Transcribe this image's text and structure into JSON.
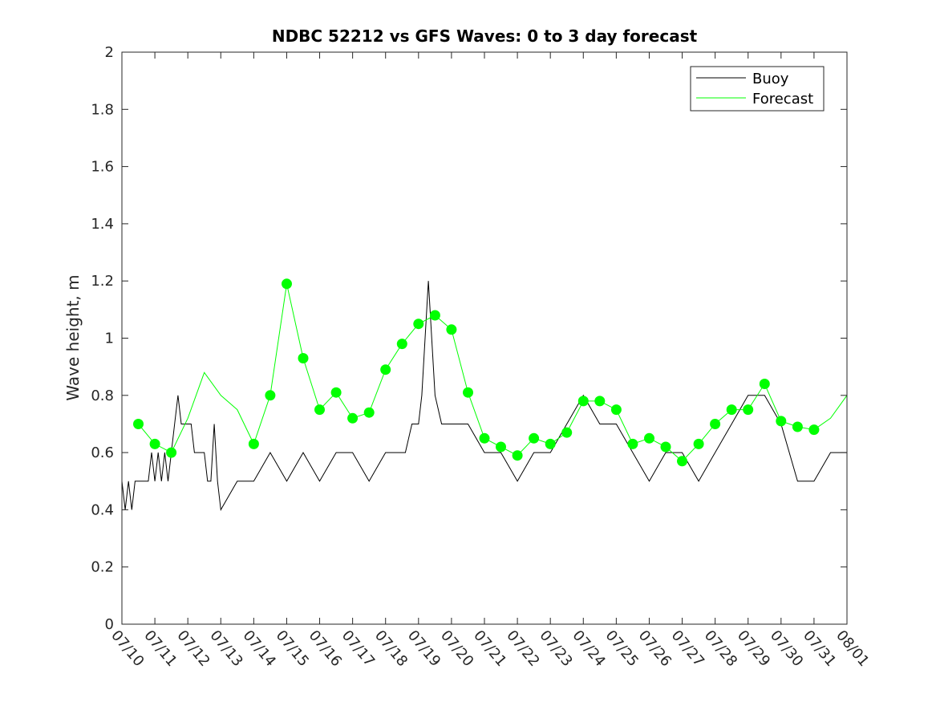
{
  "chart_data": {
    "type": "line",
    "title": "NDBC 52212 vs GFS Waves: 0 to 3 day forecast",
    "xlabel": "",
    "ylabel": "Wave height, m",
    "xlim": [
      "07/10",
      "08/01"
    ],
    "ylim": [
      0,
      2
    ],
    "yticks": [
      0,
      0.2,
      0.4,
      0.6,
      0.8,
      1,
      1.2,
      1.4,
      1.6,
      1.8,
      2
    ],
    "ytick_labels": [
      "0",
      "0.2",
      "0.4",
      "0.6",
      "0.8",
      "1",
      "1.2",
      "1.4",
      "1.6",
      "1.8",
      "2"
    ],
    "xtick_labels": [
      "07/10",
      "07/11",
      "07/12",
      "07/13",
      "07/14",
      "07/15",
      "07/16",
      "07/17",
      "07/18",
      "07/19",
      "07/20",
      "07/21",
      "07/22",
      "07/23",
      "07/24",
      "07/25",
      "07/26",
      "07/27",
      "07/28",
      "07/29",
      "07/30",
      "07/31",
      "08/01"
    ],
    "grid": false,
    "legend": {
      "placement": "top-right",
      "entries": [
        {
          "name": "Buoy",
          "color": "#000000"
        },
        {
          "name": "Forecast",
          "color": "#00ff00"
        }
      ]
    },
    "series": [
      {
        "name": "Buoy",
        "color": "#000000",
        "x": [
          0,
          0.1,
          0.2,
          0.3,
          0.4,
          0.5,
          0.6,
          0.7,
          0.8,
          0.9,
          1.0,
          1.1,
          1.2,
          1.3,
          1.4,
          1.5,
          1.6,
          1.7,
          1.8,
          1.9,
          2.0,
          2.1,
          2.2,
          2.3,
          2.4,
          2.5,
          2.6,
          2.7,
          2.8,
          2.9,
          3.0,
          3.5,
          4.0,
          4.5,
          5.0,
          5.5,
          6.0,
          6.5,
          7.0,
          7.5,
          8.0,
          8.3,
          8.6,
          8.8,
          9.0,
          9.1,
          9.2,
          9.3,
          9.5,
          9.7,
          10.0,
          10.5,
          11.0,
          11.5,
          12.0,
          12.5,
          13.0,
          13.5,
          14.0,
          14.5,
          15.0,
          15.5,
          16.0,
          16.5,
          17.0,
          17.5,
          18.0,
          18.5,
          19.0,
          19.5,
          20.0,
          20.5,
          21.0,
          21.5,
          22.0
        ],
        "y": [
          0.5,
          0.4,
          0.5,
          0.4,
          0.5,
          0.5,
          0.5,
          0.5,
          0.5,
          0.6,
          0.5,
          0.6,
          0.5,
          0.6,
          0.5,
          0.6,
          0.7,
          0.8,
          0.7,
          0.7,
          0.7,
          0.7,
          0.6,
          0.6,
          0.6,
          0.6,
          0.5,
          0.5,
          0.7,
          0.5,
          0.4,
          0.5,
          0.5,
          0.6,
          0.5,
          0.6,
          0.5,
          0.6,
          0.6,
          0.5,
          0.6,
          0.6,
          0.6,
          0.7,
          0.7,
          0.8,
          1.0,
          1.2,
          0.8,
          0.7,
          0.7,
          0.7,
          0.6,
          0.6,
          0.5,
          0.6,
          0.6,
          0.7,
          0.8,
          0.7,
          0.7,
          0.6,
          0.5,
          0.6,
          0.6,
          0.5,
          0.6,
          0.7,
          0.8,
          0.8,
          0.7,
          0.5,
          0.5,
          0.6,
          0.6
        ]
      },
      {
        "name": "Forecast",
        "color": "#00ff00",
        "x": [
          0.5,
          1.0,
          1.5,
          2.0,
          2.5,
          3.0,
          3.5,
          4.0,
          4.5,
          5.0,
          5.5,
          6.0,
          6.5,
          7.0,
          7.5,
          8.0,
          8.5,
          9.0,
          9.5,
          10.0,
          10.5,
          11.0,
          11.5,
          12.0,
          12.5,
          13.0,
          13.5,
          14.0,
          14.5,
          15.0,
          15.5,
          16.0,
          16.5,
          17.0,
          17.5,
          18.0,
          18.5,
          19.0,
          19.5,
          20.0,
          20.5,
          21.0,
          21.5,
          22.0
        ],
        "y": [
          0.7,
          0.63,
          0.6,
          0.72,
          0.88,
          0.8,
          0.75,
          0.63,
          0.8,
          1.19,
          0.93,
          0.75,
          0.81,
          0.72,
          0.74,
          0.89,
          0.98,
          1.05,
          1.08,
          1.03,
          0.81,
          0.65,
          0.62,
          0.59,
          0.65,
          0.63,
          0.67,
          0.78,
          0.78,
          0.75,
          0.63,
          0.65,
          0.62,
          0.57,
          0.63,
          0.7,
          0.75,
          0.75,
          0.84,
          0.71,
          0.69,
          0.68,
          0.72,
          0.8
        ]
      }
    ],
    "forecast_markers": {
      "x": [
        0.5,
        1.0,
        1.5,
        4.0,
        4.5,
        5.0,
        5.5,
        6.0,
        6.5,
        7.0,
        7.5,
        8.0,
        8.5,
        9.0,
        9.5,
        10.0,
        10.5,
        11.0,
        11.5,
        12.0,
        12.5,
        13.0,
        13.5,
        14.0,
        14.5,
        15.0,
        15.5,
        16.0,
        16.5,
        17.0,
        17.5,
        18.0,
        18.5,
        19.0,
        19.5,
        20.0,
        20.5,
        21.0
      ],
      "y": [
        0.7,
        0.63,
        0.6,
        0.63,
        0.8,
        1.19,
        0.93,
        0.75,
        0.81,
        0.72,
        0.74,
        0.89,
        0.98,
        1.05,
        1.08,
        1.03,
        0.81,
        0.65,
        0.62,
        0.59,
        0.65,
        0.63,
        0.67,
        0.78,
        0.78,
        0.75,
        0.63,
        0.65,
        0.62,
        0.57,
        0.63,
        0.7,
        0.75,
        0.75,
        0.84,
        0.71,
        0.69,
        0.68
      ]
    }
  }
}
